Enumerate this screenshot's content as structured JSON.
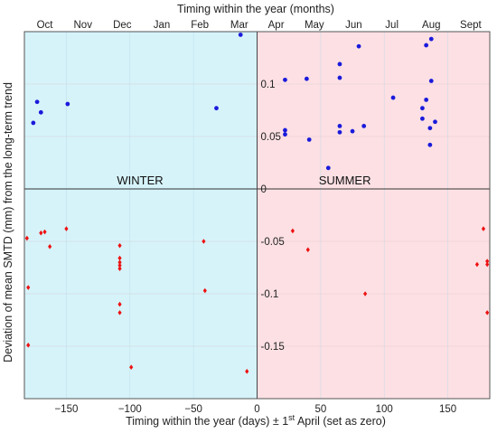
{
  "chart_data": {
    "type": "scatter",
    "top_axis_label": "Timing  within the year (months)",
    "xlabel_prefix": "Timing  within the year (days) ± 1",
    "xlabel_sup": "st",
    "xlabel_suffix": " April (set as zero)",
    "ylabel": "Deviation of mean SMTD (mm) from the long-term trend",
    "xlim": [
      -183,
      183
    ],
    "ylim": [
      -0.2,
      0.15
    ],
    "x_ticks": [
      -150,
      -100,
      -50,
      0,
      50,
      100,
      150
    ],
    "y_ticks": [
      0.1,
      0.05,
      0,
      -0.05,
      -0.1,
      -0.15
    ],
    "y_tick_labels": [
      "0.1",
      "0.05",
      "0",
      "-0.05",
      "-0.1",
      "-0.15"
    ],
    "months": [
      {
        "label": "Oct",
        "x": -167
      },
      {
        "label": "Nov",
        "x": -137
      },
      {
        "label": "Dec",
        "x": -106
      },
      {
        "label": "Jan",
        "x": -75
      },
      {
        "label": "Feb",
        "x": -45
      },
      {
        "label": "Mar",
        "x": -14
      },
      {
        "label": "Apr",
        "x": 15
      },
      {
        "label": "May",
        "x": 45
      },
      {
        "label": "Jun",
        "x": 76
      },
      {
        "label": "Jul",
        "x": 106
      },
      {
        "label": "Aug",
        "x": 137
      },
      {
        "label": "Sept",
        "x": 168
      }
    ],
    "regions": [
      {
        "name": "WINTER",
        "x_from": -183,
        "x_to": 0,
        "color": "#d6f3fa"
      },
      {
        "name": "SUMMER",
        "x_from": 0,
        "x_to": 183,
        "color": "#fce0e4"
      }
    ],
    "series": [
      {
        "marker": "circle",
        "color": "#1a1adb",
        "points": [
          [
            -176,
            0.063
          ],
          [
            -173,
            0.083
          ],
          [
            -170,
            0.073
          ],
          [
            -149,
            0.081
          ],
          [
            -32,
            0.077
          ],
          [
            -13,
            0.147
          ],
          [
            22,
            0.104
          ],
          [
            22,
            0.056
          ],
          [
            22,
            0.052
          ],
          [
            39,
            0.105
          ],
          [
            41,
            0.047
          ],
          [
            56,
            0.02
          ],
          [
            65,
            0.119
          ],
          [
            65,
            0.106
          ],
          [
            65,
            0.054
          ],
          [
            65,
            0.06
          ],
          [
            75,
            0.055
          ],
          [
            80,
            0.136
          ],
          [
            84,
            0.06
          ],
          [
            107,
            0.087
          ],
          [
            130,
            0.077
          ],
          [
            130,
            0.067
          ],
          [
            133,
            0.085
          ],
          [
            133,
            0.137
          ],
          [
            136,
            0.058
          ],
          [
            136,
            0.042
          ],
          [
            137,
            0.143
          ],
          [
            137,
            0.103
          ],
          [
            140,
            0.064
          ]
        ]
      },
      {
        "marker": "diamond",
        "color": "#ee1111",
        "points": [
          [
            -181,
            -0.047
          ],
          [
            -180,
            -0.094
          ],
          [
            -180,
            -0.149
          ],
          [
            -170,
            -0.042
          ],
          [
            -167,
            -0.041
          ],
          [
            -163,
            -0.055
          ],
          [
            -150,
            -0.038
          ],
          [
            -108,
            -0.054
          ],
          [
            -108,
            -0.066
          ],
          [
            -108,
            -0.07
          ],
          [
            -108,
            -0.073
          ],
          [
            -108,
            -0.076
          ],
          [
            -108,
            -0.11
          ],
          [
            -108,
            -0.118
          ],
          [
            -99,
            -0.17
          ],
          [
            -42,
            -0.05
          ],
          [
            -41,
            -0.097
          ],
          [
            -8,
            -0.174
          ],
          [
            28,
            -0.04
          ],
          [
            40,
            -0.058
          ],
          [
            85,
            -0.1
          ],
          [
            173,
            -0.072
          ],
          [
            178,
            -0.038
          ],
          [
            181,
            -0.069
          ],
          [
            181,
            -0.072
          ],
          [
            181,
            -0.118
          ]
        ]
      }
    ]
  }
}
